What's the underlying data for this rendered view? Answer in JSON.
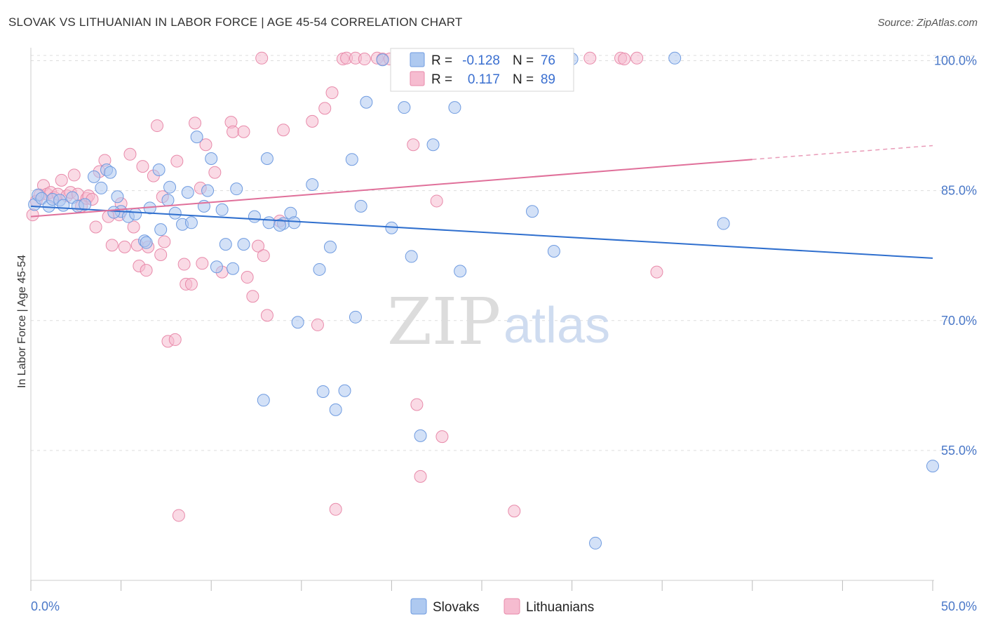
{
  "title": "SLOVAK VS LITHUANIAN IN LABOR FORCE | AGE 45-54 CORRELATION CHART",
  "source": "Source: ZipAtlas.com",
  "watermark": {
    "zip": "ZIP",
    "atlas": "atlas"
  },
  "colors": {
    "slovak_fill": "#aec9f0",
    "slovak_stroke": "#6f9be0",
    "slovak_line": "#2f6fce",
    "lithuanian_fill": "#f6bcd0",
    "lithuanian_stroke": "#e88aaa",
    "lithuanian_line": "#e0709a",
    "tick_text": "#4a78c8",
    "grid": "#dddddd"
  },
  "legend": {
    "rows": [
      {
        "r_label": "R =",
        "r_value": "-0.128",
        "n_label": "N =",
        "n_value": "76"
      },
      {
        "r_label": "R =",
        "r_value": "0.117",
        "n_label": "N =",
        "n_value": "89"
      }
    ]
  },
  "bottom_legend": [
    "Slovaks",
    "Lithuanians"
  ],
  "chart_data": {
    "type": "scatter",
    "title": "SLOVAK VS LITHUANIAN IN LABOR FORCE | AGE 45-54 CORRELATION CHART",
    "xlabel": "",
    "ylabel": "In Labor Force | Age 45-54",
    "xlim": [
      0,
      50
    ],
    "ylim": [
      40,
      101.5
    ],
    "x_tick_labels": [
      "0.0%",
      "50.0%"
    ],
    "y_ticks": [
      55,
      70,
      85,
      100
    ],
    "y_tick_labels": [
      "55.0%",
      "70.0%",
      "85.0%",
      "100.0%"
    ],
    "grid": "horizontal dashed",
    "legend_position": "top-center",
    "series": [
      {
        "name": "Slovaks",
        "r": -0.128,
        "n": 76,
        "trend": {
          "x": [
            0,
            50
          ],
          "y": [
            83.2,
            77.2
          ]
        },
        "points": [
          [
            0.2,
            83.4
          ],
          [
            0.4,
            84.5
          ],
          [
            0.6,
            84.1
          ],
          [
            1.0,
            83.2
          ],
          [
            1.2,
            84.0
          ],
          [
            1.6,
            83.9
          ],
          [
            2.3,
            84.2
          ],
          [
            2.6,
            83.2
          ],
          [
            3.0,
            83.4
          ],
          [
            3.5,
            86.6
          ],
          [
            3.9,
            85.3
          ],
          [
            4.2,
            87.4
          ],
          [
            4.4,
            87.1
          ],
          [
            4.8,
            84.3
          ],
          [
            5.0,
            82.6
          ],
          [
            5.4,
            82.0
          ],
          [
            5.8,
            82.3
          ],
          [
            6.3,
            79.2
          ],
          [
            6.6,
            83.0
          ],
          [
            7.1,
            87.4
          ],
          [
            7.2,
            80.5
          ],
          [
            7.6,
            83.9
          ],
          [
            7.7,
            85.4
          ],
          [
            8.0,
            82.4
          ],
          [
            8.4,
            81.1
          ],
          [
            8.7,
            84.8
          ],
          [
            8.9,
            81.3
          ],
          [
            9.2,
            91.2
          ],
          [
            9.6,
            83.2
          ],
          [
            9.8,
            85.0
          ],
          [
            10.0,
            88.7
          ],
          [
            10.3,
            76.2
          ],
          [
            10.6,
            82.8
          ],
          [
            10.8,
            78.8
          ],
          [
            11.2,
            76.0
          ],
          [
            11.4,
            85.2
          ],
          [
            11.8,
            78.8
          ],
          [
            12.4,
            82.0
          ],
          [
            12.9,
            60.8
          ],
          [
            13.1,
            88.7
          ],
          [
            13.2,
            81.3
          ],
          [
            14.0,
            81.2
          ],
          [
            14.4,
            82.4
          ],
          [
            14.6,
            81.3
          ],
          [
            14.8,
            69.8
          ],
          [
            15.6,
            85.7
          ],
          [
            16.0,
            75.9
          ],
          [
            16.2,
            61.8
          ],
          [
            16.6,
            78.5
          ],
          [
            16.9,
            59.7
          ],
          [
            17.4,
            61.9
          ],
          [
            17.8,
            88.6
          ],
          [
            18.0,
            70.4
          ],
          [
            18.3,
            83.2
          ],
          [
            18.6,
            95.2
          ],
          [
            19.5,
            100.1
          ],
          [
            20.0,
            80.7
          ],
          [
            20.7,
            94.6
          ],
          [
            21.1,
            77.4
          ],
          [
            21.6,
            56.7
          ],
          [
            22.3,
            90.3
          ],
          [
            23.5,
            94.6
          ],
          [
            23.8,
            75.7
          ],
          [
            24.8,
            100.1
          ],
          [
            26.2,
            100.2
          ],
          [
            27.8,
            82.6
          ],
          [
            29.0,
            78.0
          ],
          [
            30.0,
            100.2
          ],
          [
            31.3,
            44.3
          ],
          [
            35.7,
            100.3
          ],
          [
            38.4,
            81.2
          ],
          [
            50.0,
            53.2
          ],
          [
            1.8,
            83.3
          ],
          [
            6.4,
            79.0
          ],
          [
            13.8,
            81.0
          ],
          [
            4.6,
            82.5
          ]
        ]
      },
      {
        "name": "Lithuanians",
        "r": 0.117,
        "n": 89,
        "trend": {
          "x": [
            0,
            40
          ],
          "y": [
            82.0,
            88.6
          ],
          "dash_extension": {
            "x": [
              40,
              50
            ],
            "y": [
              88.6,
              90.2
            ]
          }
        },
        "points": [
          [
            0.1,
            82.2
          ],
          [
            0.3,
            83.8
          ],
          [
            0.5,
            84.5
          ],
          [
            0.7,
            85.6
          ],
          [
            0.9,
            84.6
          ],
          [
            1.1,
            84.8
          ],
          [
            1.3,
            84.2
          ],
          [
            1.5,
            84.6
          ],
          [
            1.7,
            86.2
          ],
          [
            2.0,
            84.4
          ],
          [
            2.2,
            84.8
          ],
          [
            2.4,
            86.8
          ],
          [
            2.6,
            84.6
          ],
          [
            2.8,
            83.2
          ],
          [
            3.1,
            84.1
          ],
          [
            3.2,
            84.4
          ],
          [
            3.4,
            84.0
          ],
          [
            3.6,
            80.8
          ],
          [
            3.8,
            87.2
          ],
          [
            4.1,
            88.5
          ],
          [
            4.3,
            82.0
          ],
          [
            4.5,
            78.7
          ],
          [
            4.9,
            82.2
          ],
          [
            5.0,
            83.5
          ],
          [
            5.2,
            78.5
          ],
          [
            5.5,
            89.2
          ],
          [
            5.7,
            80.8
          ],
          [
            5.9,
            78.7
          ],
          [
            6.0,
            76.3
          ],
          [
            6.2,
            87.8
          ],
          [
            6.4,
            75.8
          ],
          [
            6.5,
            78.5
          ],
          [
            6.8,
            86.7
          ],
          [
            7.0,
            92.5
          ],
          [
            7.2,
            77.6
          ],
          [
            7.3,
            84.3
          ],
          [
            7.4,
            79.1
          ],
          [
            7.6,
            67.6
          ],
          [
            8.0,
            67.8
          ],
          [
            8.1,
            88.4
          ],
          [
            8.2,
            47.5
          ],
          [
            8.5,
            76.5
          ],
          [
            8.6,
            74.2
          ],
          [
            8.9,
            74.2
          ],
          [
            9.1,
            92.8
          ],
          [
            9.4,
            85.3
          ],
          [
            9.5,
            76.6
          ],
          [
            9.7,
            90.3
          ],
          [
            10.2,
            87.1
          ],
          [
            10.6,
            75.6
          ],
          [
            11.1,
            92.9
          ],
          [
            11.2,
            91.8
          ],
          [
            11.8,
            91.8
          ],
          [
            12.0,
            75.0
          ],
          [
            12.3,
            72.8
          ],
          [
            12.6,
            78.6
          ],
          [
            12.8,
            100.3
          ],
          [
            12.9,
            77.5
          ],
          [
            13.1,
            70.6
          ],
          [
            13.8,
            81.5
          ],
          [
            14.0,
            92.0
          ],
          [
            15.6,
            93.0
          ],
          [
            15.9,
            69.5
          ],
          [
            16.3,
            94.5
          ],
          [
            16.7,
            96.3
          ],
          [
            16.9,
            48.2
          ],
          [
            17.3,
            100.2
          ],
          [
            17.5,
            100.3
          ],
          [
            18.0,
            100.3
          ],
          [
            18.5,
            100.2
          ],
          [
            19.2,
            100.3
          ],
          [
            19.5,
            100.2
          ],
          [
            19.9,
            100.2
          ],
          [
            20.3,
            100.2
          ],
          [
            20.8,
            100.2
          ],
          [
            21.2,
            90.3
          ],
          [
            21.4,
            60.3
          ],
          [
            21.6,
            52.0
          ],
          [
            22.5,
            83.8
          ],
          [
            22.8,
            56.6
          ],
          [
            25.3,
            100.2
          ],
          [
            26.5,
            100.2
          ],
          [
            26.8,
            48.0
          ],
          [
            31.0,
            100.3
          ],
          [
            32.7,
            100.3
          ],
          [
            32.9,
            100.2
          ],
          [
            33.6,
            100.3
          ],
          [
            34.7,
            75.6
          ],
          [
            28.1,
            100.2
          ]
        ]
      }
    ]
  }
}
